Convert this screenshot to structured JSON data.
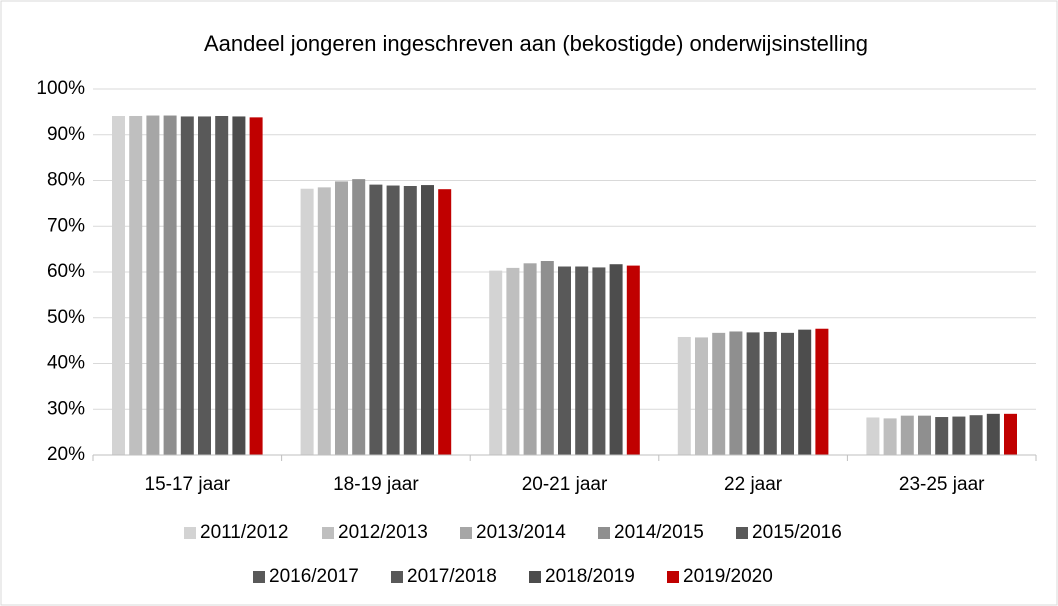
{
  "chart_data": {
    "type": "bar",
    "title": "Aandeel jongeren ingeschreven aan (bekostigde) onderwijsinstelling",
    "categories": [
      "15-17 jaar",
      "18-19 jaar",
      "20-21 jaar",
      "22 jaar",
      "23-25 jaar"
    ],
    "series": [
      {
        "name": "2011/2012",
        "color": "#d3d3d3",
        "values": [
          94.1,
          78.2,
          60.3,
          45.8,
          28.2
        ]
      },
      {
        "name": "2012/2013",
        "color": "#bfbfbf",
        "values": [
          94.1,
          78.5,
          60.9,
          45.7,
          28.0
        ]
      },
      {
        "name": "2013/2014",
        "color": "#a6a6a6",
        "values": [
          94.2,
          79.8,
          61.9,
          46.7,
          28.6
        ]
      },
      {
        "name": "2014/2015",
        "color": "#8f8f8f",
        "values": [
          94.2,
          80.3,
          62.4,
          47.0,
          28.6
        ]
      },
      {
        "name": "2015/2016",
        "color": "#595959",
        "values": [
          94.0,
          79.1,
          61.2,
          46.8,
          28.3
        ]
      },
      {
        "name": "2016/2017",
        "color": "#595959",
        "values": [
          94.0,
          78.9,
          61.2,
          46.9,
          28.4
        ]
      },
      {
        "name": "2017/2018",
        "color": "#595959",
        "values": [
          94.1,
          78.8,
          61.0,
          46.7,
          28.7
        ]
      },
      {
        "name": "2018/2019",
        "color": "#4d4d4d",
        "values": [
          94.0,
          79.0,
          61.7,
          47.4,
          29.0
        ]
      },
      {
        "name": "2019/2020",
        "color": "#c00000",
        "values": [
          93.8,
          78.1,
          61.4,
          47.6,
          29.0
        ]
      }
    ],
    "ylim": [
      20,
      100
    ],
    "yticks": [
      {
        "value": 20,
        "label": "20%"
      },
      {
        "value": 30,
        "label": "30%"
      },
      {
        "value": 40,
        "label": "40%"
      },
      {
        "value": 50,
        "label": "50%"
      },
      {
        "value": 60,
        "label": "60%"
      },
      {
        "value": 70,
        "label": "70%"
      },
      {
        "value": 80,
        "label": "80%"
      },
      {
        "value": 90,
        "label": "90%"
      },
      {
        "value": 100,
        "label": "100%"
      }
    ],
    "grid": true
  }
}
